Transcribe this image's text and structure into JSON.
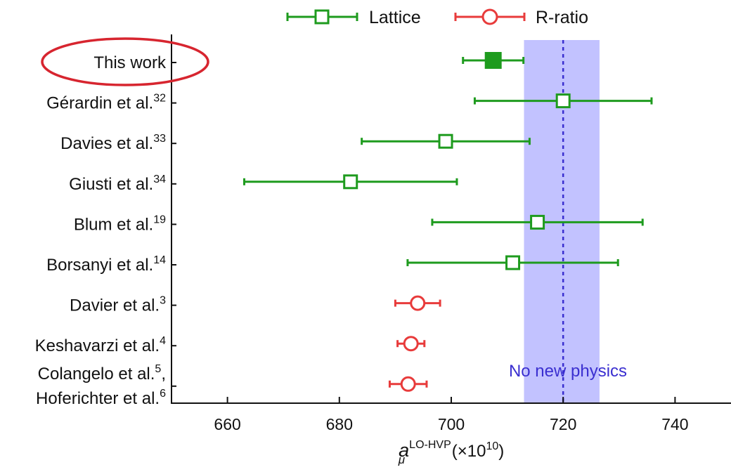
{
  "chart_data": {
    "type": "scatter",
    "subtype": "forest-plot-with-horizontal-error-bars",
    "xlim": [
      650,
      750
    ],
    "x_ticks": [
      660,
      680,
      700,
      720,
      740
    ],
    "xlabel": {
      "symbol": "a",
      "subscript": "μ",
      "superscript": "LO-HVP",
      "unit_prefix": " (×10",
      "unit_exponent": "10",
      "unit_suffix": ")"
    },
    "legend": {
      "placement": "top",
      "entries": [
        {
          "name": "Lattice",
          "marker": "square-open",
          "color": "#1e9b1e"
        },
        {
          "name": "R-ratio",
          "marker": "circle-open",
          "color": "#e83b3b"
        }
      ]
    },
    "band": {
      "range": [
        713,
        726.5
      ],
      "color": "#c2c2ff"
    },
    "reference_line": {
      "x": 720,
      "color": "#3a2fd0",
      "label": "No new physics"
    },
    "highlight": {
      "row": 0,
      "color": "#d7252f"
    },
    "series": [
      {
        "name": "Lattice",
        "color": "#1e9b1e",
        "points": [
          {
            "label": "This work",
            "sup": "",
            "value": 707.5,
            "low": 702.1,
            "high": 712.9,
            "filled": true
          },
          {
            "label": "Gérardin et al.",
            "sup": "32",
            "value": 720.0,
            "low": 704.2,
            "high": 735.8,
            "filled": false
          },
          {
            "label": "Davies et al.",
            "sup": "33",
            "value": 699.0,
            "low": 684.0,
            "high": 714.0,
            "filled": false
          },
          {
            "label": "Giusti et al.",
            "sup": "34",
            "value": 682.0,
            "low": 663.0,
            "high": 701.0,
            "filled": false
          },
          {
            "label": "Blum et al.",
            "sup": "19",
            "value": 715.4,
            "low": 696.6,
            "high": 734.2,
            "filled": false
          },
          {
            "label": "Borsanyi et al.",
            "sup": "14",
            "value": 711.0,
            "low": 692.2,
            "high": 729.8,
            "filled": false
          }
        ]
      },
      {
        "name": "R-ratio",
        "color": "#e83b3b",
        "points": [
          {
            "label": "Davier et al.",
            "sup": "3",
            "value": 694.0,
            "low": 690.0,
            "high": 698.0,
            "filled": false
          },
          {
            "label": "Keshavarzi et al.",
            "sup": "4",
            "value": 692.8,
            "low": 690.4,
            "high": 695.2,
            "filled": false
          },
          {
            "label": "Colangelo et al.",
            "sup": "5",
            "label_suffix": ",",
            "label2": "Hoferichter et al.",
            "sup2": "6",
            "value": 692.3,
            "low": 689.0,
            "high": 695.6,
            "filled": false
          }
        ]
      }
    ]
  }
}
